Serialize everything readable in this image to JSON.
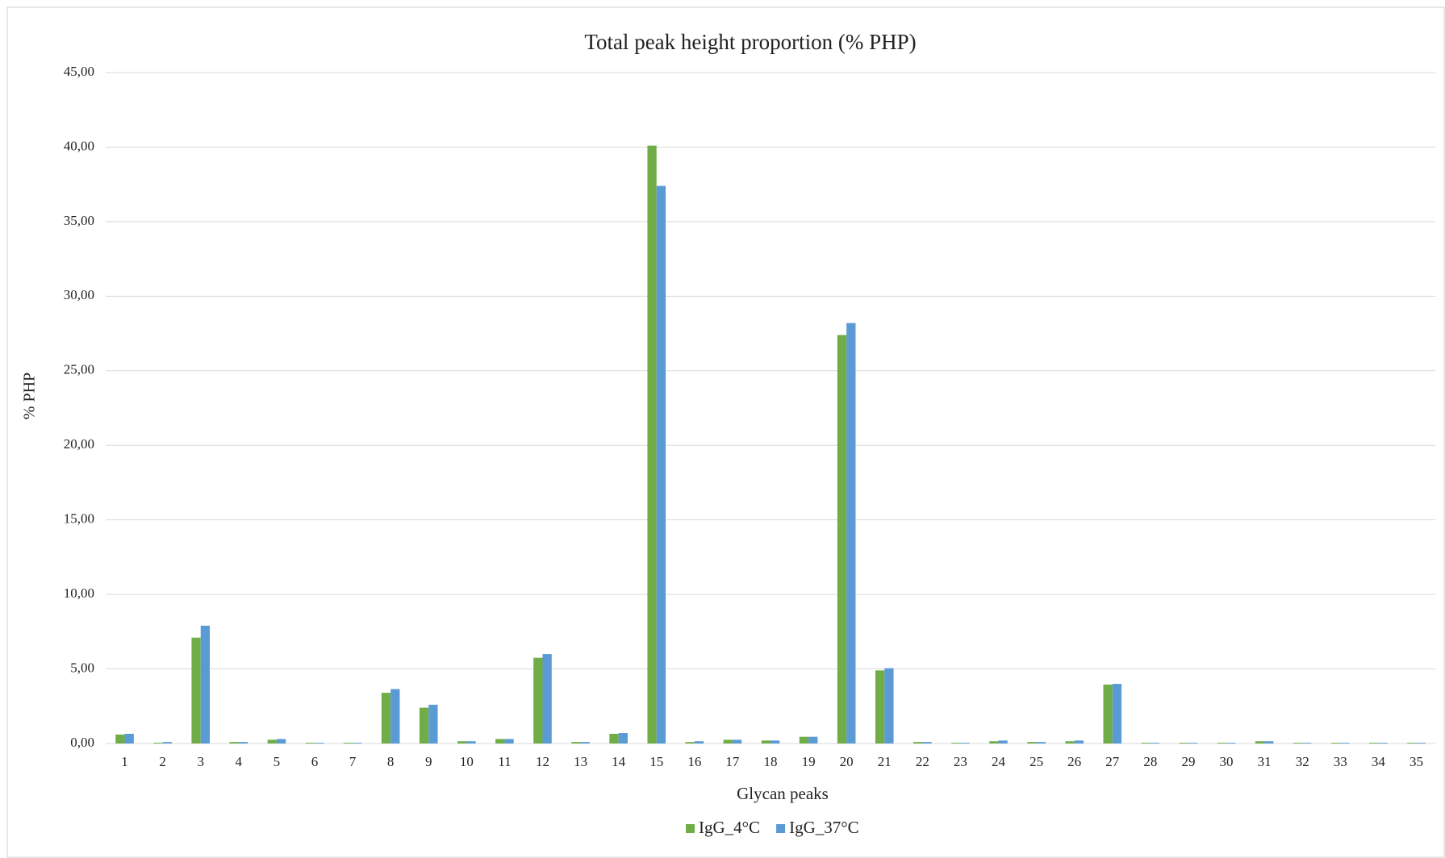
{
  "chart_data": {
    "type": "bar",
    "title": "Total peak height proportion  (% PHP)",
    "x_label": "Glycan peaks",
    "y_label": "% PHP",
    "categories": [
      "1",
      "2",
      "3",
      "4",
      "5",
      "6",
      "7",
      "8",
      "9",
      "10",
      "11",
      "12",
      "13",
      "14",
      "15",
      "16",
      "17",
      "18",
      "19",
      "20",
      "21",
      "22",
      "23",
      "24",
      "25",
      "26",
      "27",
      "28",
      "29",
      "30",
      "31",
      "32",
      "33",
      "34",
      "35"
    ],
    "series": [
      {
        "name": "IgG_4°C",
        "color": "#70ad47",
        "values": [
          0.6,
          0.05,
          7.1,
          0.1,
          0.25,
          0.05,
          0.05,
          3.4,
          2.4,
          0.15,
          0.3,
          5.75,
          0.1,
          0.65,
          40.1,
          0.1,
          0.25,
          0.2,
          0.45,
          27.4,
          4.9,
          0.1,
          0.05,
          0.15,
          0.1,
          0.15,
          3.95,
          0.05,
          0.05,
          0.05,
          0.15,
          0.05,
          0.05,
          0.05,
          0.05
        ]
      },
      {
        "name": "IgG_37°C",
        "color": "#5b9bd5",
        "values": [
          0.65,
          0.1,
          7.9,
          0.1,
          0.3,
          0.05,
          0.05,
          3.65,
          2.6,
          0.15,
          0.3,
          6.0,
          0.1,
          0.7,
          37.4,
          0.15,
          0.25,
          0.2,
          0.45,
          28.2,
          5.05,
          0.1,
          0.05,
          0.2,
          0.1,
          0.2,
          4.0,
          0.05,
          0.05,
          0.05,
          0.15,
          0.05,
          0.05,
          0.05,
          0.05
        ]
      }
    ],
    "ylim": [
      0,
      45
    ],
    "yticks": [
      {
        "value": 0,
        "label": "0,00"
      },
      {
        "value": 5,
        "label": "5,00"
      },
      {
        "value": 10,
        "label": "10,00"
      },
      {
        "value": 15,
        "label": "15,00"
      },
      {
        "value": 20,
        "label": "20,00"
      },
      {
        "value": 25,
        "label": "25,00"
      },
      {
        "value": 30,
        "label": "30,00"
      },
      {
        "value": 35,
        "label": "35,00"
      },
      {
        "value": 40,
        "label": "40,00"
      },
      {
        "value": 45,
        "label": "45,00"
      }
    ],
    "grid": true,
    "legend": "bottom"
  }
}
